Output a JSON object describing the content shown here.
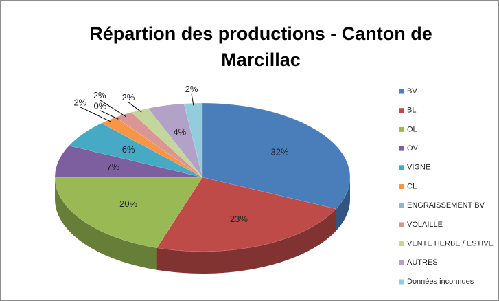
{
  "chart_data": {
    "type": "pie",
    "title": "Répartion des productions - Canton de Marcillac",
    "categories": [
      "BV",
      "BL",
      "OL",
      "OV",
      "VIGNE",
      "CL",
      "ENGRAISSEMENT BV",
      "VOLAILLE",
      "VENTE HERBE / ESTIVE",
      "AUTRES",
      "Données inconnues"
    ],
    "values": [
      32,
      23,
      20,
      7,
      6,
      2,
      0,
      2,
      2,
      4,
      2
    ],
    "value_labels": [
      "32%",
      "23%",
      "20%",
      "7%",
      "6%",
      "2%",
      "0%",
      "2%",
      "2%",
      "4%",
      "2%"
    ],
    "colors": [
      "#4a7ebb",
      "#be4b48",
      "#98b954",
      "#7d5fa0",
      "#46aac5",
      "#f79646",
      "#95b3d7",
      "#d99694",
      "#c3d69b",
      "#b3a2c7",
      "#93cddd"
    ],
    "legend": "right"
  }
}
